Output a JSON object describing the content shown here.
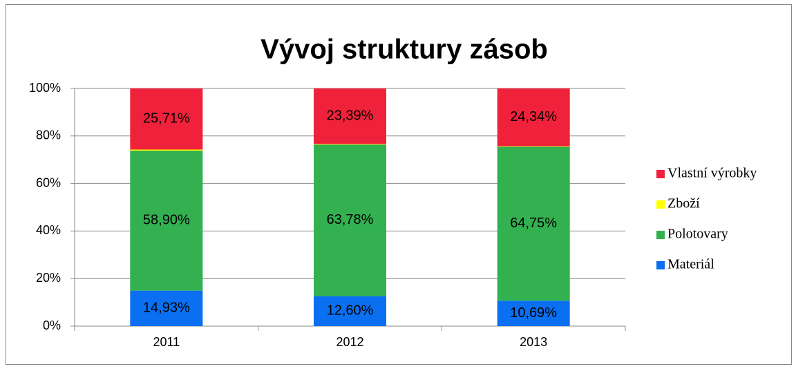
{
  "chart_data": {
    "type": "stacked_bar",
    "title": "Vývoj struktury zásob",
    "categories": [
      "2011",
      "2012",
      "2013"
    ],
    "series": [
      {
        "name": "Materiál",
        "color": "#0a6ff0",
        "values": [
          14.93,
          12.6,
          10.69
        ],
        "value_labels": [
          "14,93%",
          "12,60%",
          "10,69%"
        ]
      },
      {
        "name": "Polotovary",
        "color": "#33b050",
        "values": [
          58.9,
          63.78,
          64.75
        ],
        "value_labels": [
          "58,90%",
          "63,78%",
          "64,75%"
        ]
      },
      {
        "name": "Zboží",
        "color": "#ffff00",
        "values": [
          0.46,
          0.23,
          0.22
        ]
      },
      {
        "name": "Vlastní výrobky",
        "color": "#f0213a",
        "values": [
          25.71,
          23.39,
          24.34
        ],
        "value_labels": [
          "25,71%",
          "23,39%",
          "24,34%"
        ]
      }
    ],
    "ylim": [
      0,
      100
    ],
    "yticks": [
      {
        "value": 0,
        "label": "0%"
      },
      {
        "value": 20,
        "label": "20%"
      },
      {
        "value": 40,
        "label": "40%"
      },
      {
        "value": 60,
        "label": "60%"
      },
      {
        "value": 80,
        "label": "80%"
      },
      {
        "value": 100,
        "label": "100%"
      }
    ],
    "grid": true,
    "legend": "right"
  }
}
